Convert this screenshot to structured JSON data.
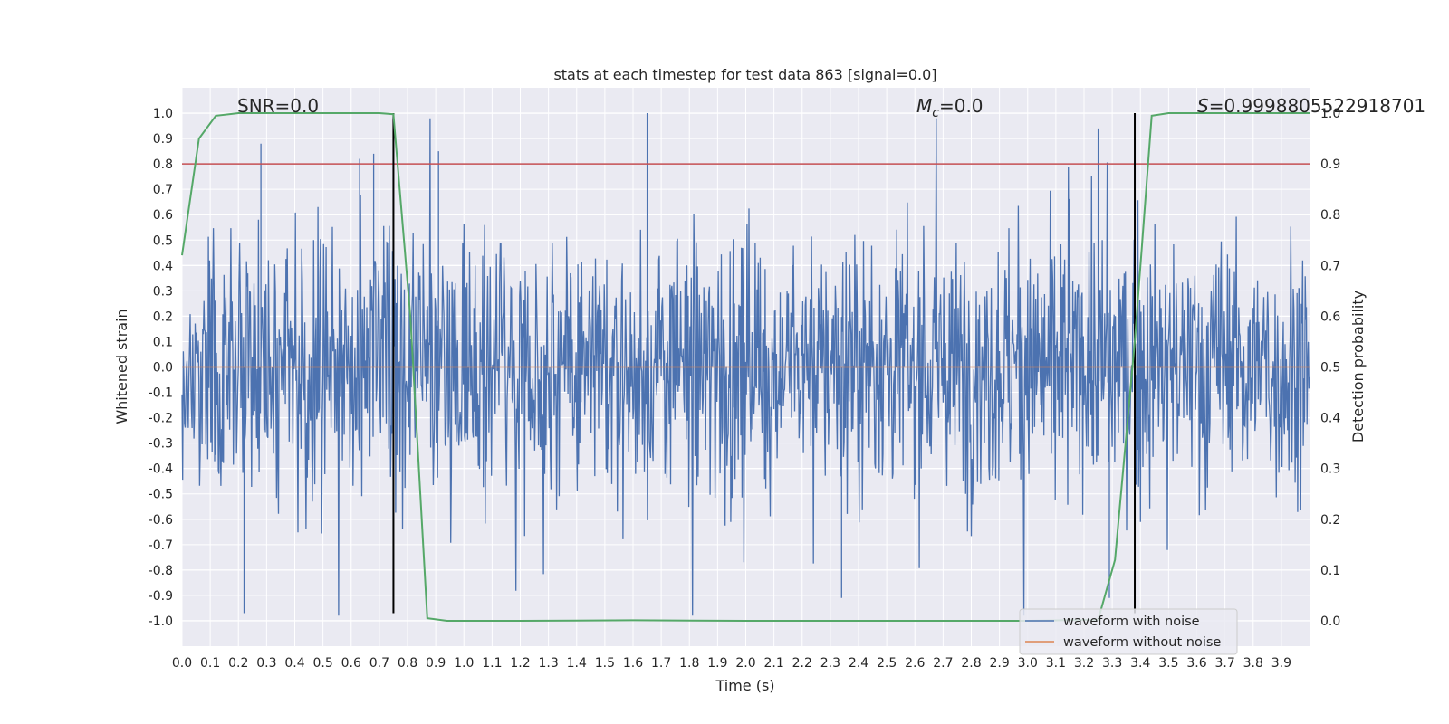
{
  "chart_data": {
    "type": "line",
    "title": "stats at each timestep for test data 863 [signal=0.0]",
    "xlabel": "Time (s)",
    "ylabel": "Whitened strain",
    "y2label": "Detection probability",
    "xlim": [
      0.0,
      4.0
    ],
    "ylim": [
      -1.1,
      1.1
    ],
    "y2lim": [
      -0.05,
      1.05
    ],
    "xticks": [
      "0.0",
      "0.1",
      "0.2",
      "0.3",
      "0.4",
      "0.5",
      "0.6",
      "0.7",
      "0.8",
      "0.9",
      "1.0",
      "1.1",
      "1.2",
      "1.3",
      "1.4",
      "1.5",
      "1.6",
      "1.7",
      "1.8",
      "1.9",
      "2.0",
      "2.1",
      "2.2",
      "2.3",
      "2.4",
      "2.5",
      "2.6",
      "2.7",
      "2.8",
      "2.9",
      "3.0",
      "3.1",
      "3.2",
      "3.3",
      "3.4",
      "3.5",
      "3.6",
      "3.7",
      "3.8",
      "3.9"
    ],
    "yticks": [
      "1.0",
      "0.9",
      "0.8",
      "0.7",
      "0.6",
      "0.5",
      "0.4",
      "0.3",
      "0.2",
      "0.1",
      "0.0",
      "-0.1",
      "-0.2",
      "-0.3",
      "-0.4",
      "-0.5",
      "-0.6",
      "-0.7",
      "-0.8",
      "-0.9",
      "-1.0"
    ],
    "y2ticks": [
      "1.0",
      "0.9",
      "0.8",
      "0.7",
      "0.6",
      "0.5",
      "0.4",
      "0.3",
      "0.2",
      "0.1",
      "0.0"
    ],
    "annotations": {
      "snr": "SNR=0.0",
      "mc_symbol": "M",
      "mc_sub": "c",
      "mc_value": "=0.0",
      "s_symbol": "S",
      "s_value": "=0.999880552291870​1"
    },
    "series": [
      {
        "name": "waveform with noise",
        "color": "#4c72b0",
        "description": "dense whitened noise, amplitude mostly within ±0.4, spikes up to ±1.0",
        "peaks": [
          {
            "x": 0.22,
            "y": -0.97
          },
          {
            "x": 0.28,
            "y": 0.88
          },
          {
            "x": 0.63,
            "y": 0.82
          },
          {
            "x": 0.68,
            "y": 0.84
          },
          {
            "x": 0.91,
            "y": 0.85
          },
          {
            "x": 1.65,
            "y": 1.0
          },
          {
            "x": 2.34,
            "y": -0.91
          },
          {
            "x": 3.25,
            "y": 0.94
          },
          {
            "x": 3.29,
            "y": -0.91
          }
        ]
      },
      {
        "name": "waveform without noise",
        "color": "#dd8452",
        "x": [
          0.0,
          4.0
        ],
        "y": [
          0.0,
          0.0
        ]
      },
      {
        "name": "detection probability",
        "color": "#55a868",
        "axis": "right",
        "x": [
          0.0,
          0.06,
          0.12,
          0.2,
          0.3,
          0.5,
          0.7,
          0.75,
          0.81,
          0.87,
          0.94,
          1.2,
          1.6,
          2.0,
          2.5,
          3.0,
          3.25,
          3.31,
          3.38,
          3.44,
          3.5,
          3.7,
          4.0
        ],
        "y": [
          0.72,
          0.95,
          0.995,
          1.0,
          1.0,
          1.0,
          1.0,
          0.998,
          0.6,
          0.005,
          0.0,
          0.0,
          0.001,
          0.0,
          0.0,
          0.0,
          0.002,
          0.12,
          0.55,
          0.995,
          1.0,
          1.0,
          1.0
        ]
      }
    ],
    "threshold": {
      "value": 0.9,
      "axis": "right",
      "color": "#c44e52"
    },
    "vlines": [
      {
        "x": 0.75,
        "ymin": -0.97,
        "ymax": 1.0,
        "color": "#000000"
      },
      {
        "x": 3.38,
        "ymin": -0.97,
        "ymax": 1.0,
        "color": "#000000"
      }
    ],
    "legend": {
      "placement": "lower-right",
      "entries": [
        {
          "label": "waveform with noise",
          "color": "#4c72b0"
        },
        {
          "label": "waveform without noise",
          "color": "#dd8452"
        }
      ]
    },
    "style": {
      "background": "#eaeaf2",
      "grid": true,
      "grid_color": "#ffffff"
    }
  }
}
